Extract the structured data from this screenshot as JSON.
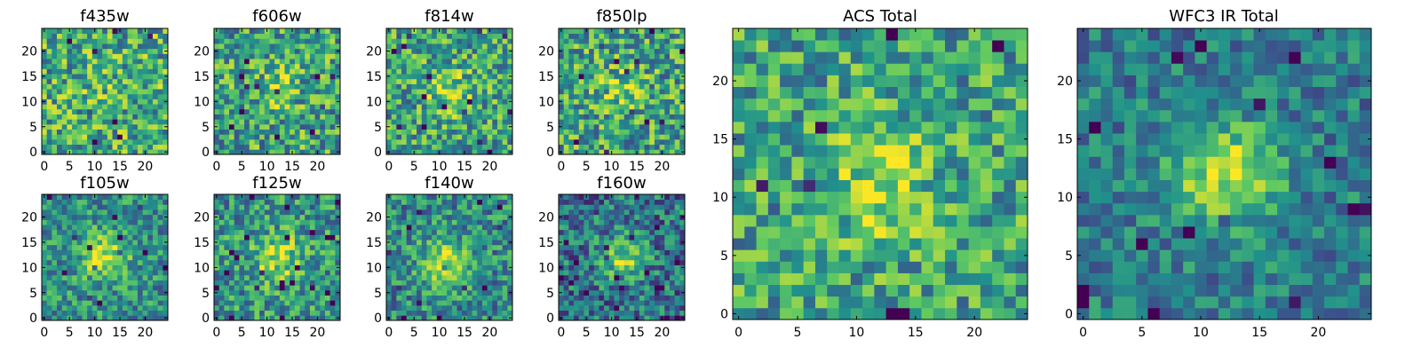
{
  "figure": {
    "description_colormap": "viridis",
    "colormap_stops": [
      "#440154",
      "#3b528b",
      "#21918c",
      "#5ec962",
      "#fde725"
    ]
  },
  "chart_data": [
    {
      "type": "heatmap",
      "title": "f435w",
      "grid_size": 25,
      "xlim": [
        -0.5,
        24.5
      ],
      "ylim": [
        -0.5,
        24.5
      ],
      "xticks": [
        0,
        5,
        10,
        15,
        20
      ],
      "yticks": [
        0,
        5,
        10,
        15,
        20
      ],
      "peak": [
        12,
        12
      ],
      "peak_strength": 0.05,
      "noise": 0.42,
      "base": 0.62,
      "seed": 11
    },
    {
      "type": "heatmap",
      "title": "f606w",
      "grid_size": 25,
      "xlim": [
        -0.5,
        24.5
      ],
      "ylim": [
        -0.5,
        24.5
      ],
      "xticks": [
        0,
        5,
        10,
        15,
        20
      ],
      "yticks": [
        0,
        5,
        10,
        15,
        20
      ],
      "peak": [
        12,
        13
      ],
      "peak_strength": 0.18,
      "noise": 0.42,
      "base": 0.58,
      "seed": 23
    },
    {
      "type": "heatmap",
      "title": "f814w",
      "grid_size": 25,
      "xlim": [
        -0.5,
        24.5
      ],
      "ylim": [
        -0.5,
        24.5
      ],
      "xticks": [
        0,
        5,
        10,
        15,
        20
      ],
      "yticks": [
        0,
        5,
        10,
        15,
        20
      ],
      "peak": [
        12,
        12
      ],
      "peak_strength": 0.25,
      "noise": 0.4,
      "base": 0.58,
      "seed": 37
    },
    {
      "type": "heatmap",
      "title": "f850lp",
      "grid_size": 25,
      "xlim": [
        -0.5,
        24.5
      ],
      "ylim": [
        -0.5,
        24.5
      ],
      "xticks": [
        0,
        5,
        10,
        15,
        20
      ],
      "yticks": [
        0,
        5,
        10,
        15,
        20
      ],
      "peak": [
        12,
        12
      ],
      "peak_strength": 0.18,
      "noise": 0.42,
      "base": 0.58,
      "seed": 41
    },
    {
      "type": "heatmap",
      "title": "f105w",
      "grid_size": 25,
      "xlim": [
        -0.5,
        24.5
      ],
      "ylim": [
        -0.5,
        24.5
      ],
      "xticks": [
        0,
        5,
        10,
        15,
        20
      ],
      "yticks": [
        0,
        5,
        10,
        15,
        20
      ],
      "peak": [
        12,
        12
      ],
      "peak_strength": 0.42,
      "noise": 0.32,
      "base": 0.5,
      "seed": 53
    },
    {
      "type": "heatmap",
      "title": "f125w",
      "grid_size": 25,
      "xlim": [
        -0.5,
        24.5
      ],
      "ylim": [
        -0.5,
        24.5
      ],
      "xticks": [
        0,
        5,
        10,
        15,
        20
      ],
      "yticks": [
        0,
        5,
        10,
        15,
        20
      ],
      "peak": [
        12,
        12
      ],
      "peak_strength": 0.38,
      "noise": 0.36,
      "base": 0.52,
      "seed": 67
    },
    {
      "type": "heatmap",
      "title": "f140w",
      "grid_size": 25,
      "xlim": [
        -0.5,
        24.5
      ],
      "ylim": [
        -0.5,
        24.5
      ],
      "xticks": [
        0,
        5,
        10,
        15,
        20
      ],
      "yticks": [
        0,
        5,
        10,
        15,
        20
      ],
      "peak": [
        11,
        11
      ],
      "peak_strength": 0.45,
      "noise": 0.34,
      "base": 0.48,
      "seed": 79
    },
    {
      "type": "heatmap",
      "title": "f160w",
      "grid_size": 25,
      "xlim": [
        -0.5,
        24.5
      ],
      "ylim": [
        -0.5,
        24.5
      ],
      "xticks": [
        0,
        5,
        10,
        15,
        20
      ],
      "yticks": [
        0,
        5,
        10,
        15,
        20
      ],
      "peak": [
        12,
        12
      ],
      "peak_strength": 0.4,
      "noise": 0.36,
      "base": 0.38,
      "seed": 83
    },
    {
      "type": "heatmap",
      "title": "ACS Total",
      "grid_size": 25,
      "xlim": [
        -0.5,
        24.5
      ],
      "ylim": [
        -0.5,
        24.5
      ],
      "xticks": [
        0,
        5,
        10,
        15,
        20
      ],
      "yticks": [
        0,
        5,
        10,
        15,
        20
      ],
      "peak": [
        12,
        11
      ],
      "peak_strength": 0.3,
      "noise": 0.36,
      "base": 0.58,
      "seed": 97
    },
    {
      "type": "heatmap",
      "title": "WFC3 IR Total",
      "grid_size": 25,
      "xlim": [
        -0.5,
        24.5
      ],
      "ylim": [
        -0.5,
        24.5
      ],
      "xticks": [
        0,
        5,
        10,
        15,
        20
      ],
      "yticks": [
        0,
        5,
        10,
        15,
        20
      ],
      "peak": [
        12,
        12
      ],
      "peak_strength": 0.48,
      "noise": 0.26,
      "base": 0.42,
      "seed": 101
    }
  ]
}
